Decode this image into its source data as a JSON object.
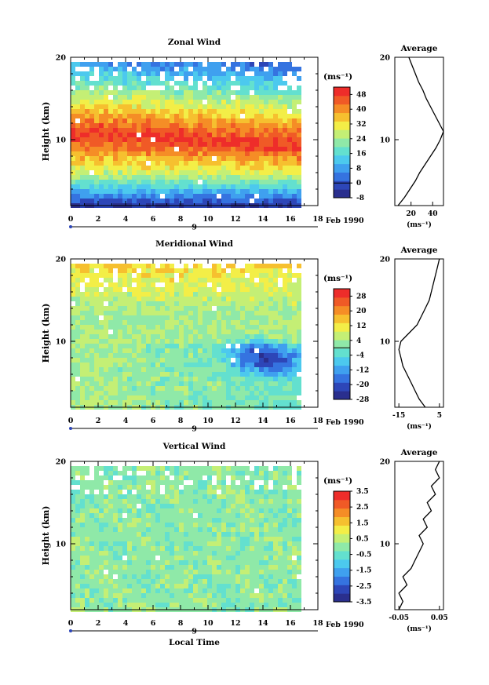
{
  "colors": {
    "colorbar": [
      "#2a2f8e",
      "#2d46b8",
      "#3573e0",
      "#3fa0ef",
      "#4cc9ee",
      "#63e0cf",
      "#8fe9a8",
      "#c4ef75",
      "#f3ee47",
      "#f6c02f",
      "#f58d26",
      "#f05a26",
      "#ee2d2a"
    ]
  },
  "xlabel": "Local Time",
  "date_marker": "9",
  "date_label": "Feb 1990",
  "unit_label": "(ms⁻¹)",
  "chart_data": [
    {
      "type": "heatmap",
      "title": "Zonal Wind",
      "ylabel": "Height (km)",
      "xlim": [
        0,
        18
      ],
      "ylim": [
        2,
        20
      ],
      "xticks": [
        "0",
        "2",
        "4",
        "6",
        "8",
        "10",
        "12",
        "14",
        "16",
        "18"
      ],
      "yticks": [
        "10",
        "20"
      ],
      "colorbar": {
        "ticks": [
          "48",
          "40",
          "32",
          "24",
          "16",
          "8",
          "0",
          "-8"
        ],
        "range": [
          -8,
          52
        ],
        "zero_line": 0
      },
      "average_profile": {
        "title": "Average",
        "xticks": [
          "20",
          "40"
        ],
        "xlim": [
          5,
          50
        ],
        "xlabel": "(ms⁻¹)",
        "heights": [
          2,
          3,
          4,
          5,
          6,
          7,
          8,
          9,
          10,
          11,
          12,
          13,
          14,
          15,
          16,
          17,
          18,
          19,
          20
        ],
        "values": [
          8,
          14,
          19,
          24,
          28,
          33,
          38,
          43,
          47,
          50,
          46,
          42,
          38,
          34,
          31,
          27,
          24,
          21,
          18
        ]
      }
    },
    {
      "type": "heatmap",
      "title": "Meridional Wind",
      "ylabel": "Height (km)",
      "xlim": [
        0,
        18
      ],
      "ylim": [
        2,
        20
      ],
      "xticks": [
        "0",
        "2",
        "4",
        "6",
        "8",
        "10",
        "12",
        "14",
        "16",
        "18"
      ],
      "yticks": [
        "10",
        "20"
      ],
      "colorbar": {
        "ticks": [
          "28",
          "20",
          "12",
          "4",
          "-4",
          "-12",
          "-20",
          "-28"
        ],
        "range": [
          -28,
          32
        ],
        "zero_line": 0
      },
      "average_profile": {
        "title": "Average",
        "xticks": [
          "-15",
          "5"
        ],
        "xlim": [
          -17,
          7
        ],
        "xlabel": "(ms⁻¹)",
        "heights": [
          2,
          3,
          4,
          5,
          6,
          7,
          8,
          9,
          10,
          11,
          12,
          13,
          14,
          15,
          16,
          17,
          18,
          19,
          20
        ],
        "values": [
          -2,
          -5,
          -7,
          -9,
          -11,
          -13,
          -14,
          -15,
          -14,
          -10,
          -6,
          -4,
          -2,
          0,
          1,
          2,
          3,
          4,
          5
        ]
      }
    },
    {
      "type": "heatmap",
      "title": "Vertical Wind",
      "ylabel": "Height (km)",
      "xlim": [
        0,
        18
      ],
      "ylim": [
        2,
        20
      ],
      "xticks": [
        "0",
        "2",
        "4",
        "6",
        "8",
        "10",
        "12",
        "14",
        "16",
        "18"
      ],
      "yticks": [
        "10",
        "20"
      ],
      "colorbar": {
        "ticks": [
          "3.5",
          "2.5",
          "1.5",
          "0.5",
          "-0.5",
          "-1.5",
          "-2.5",
          "-3.5"
        ],
        "range": [
          -3.5,
          3.5
        ],
        "zero_line": null
      },
      "average_profile": {
        "title": "Average",
        "xticks": [
          "-0.05",
          "0.05"
        ],
        "xlim": [
          -0.06,
          0.06
        ],
        "xlabel": "(ms⁻¹)",
        "heights": [
          2,
          3,
          4,
          5,
          6,
          7,
          8,
          9,
          10,
          11,
          12,
          13,
          14,
          15,
          16,
          17,
          18,
          19,
          20
        ],
        "values": [
          -0.05,
          -0.04,
          -0.05,
          -0.03,
          -0.04,
          -0.02,
          -0.01,
          0.0,
          0.01,
          0.0,
          0.02,
          0.01,
          0.03,
          0.02,
          0.04,
          0.03,
          0.05,
          0.04,
          0.05
        ]
      }
    }
  ]
}
